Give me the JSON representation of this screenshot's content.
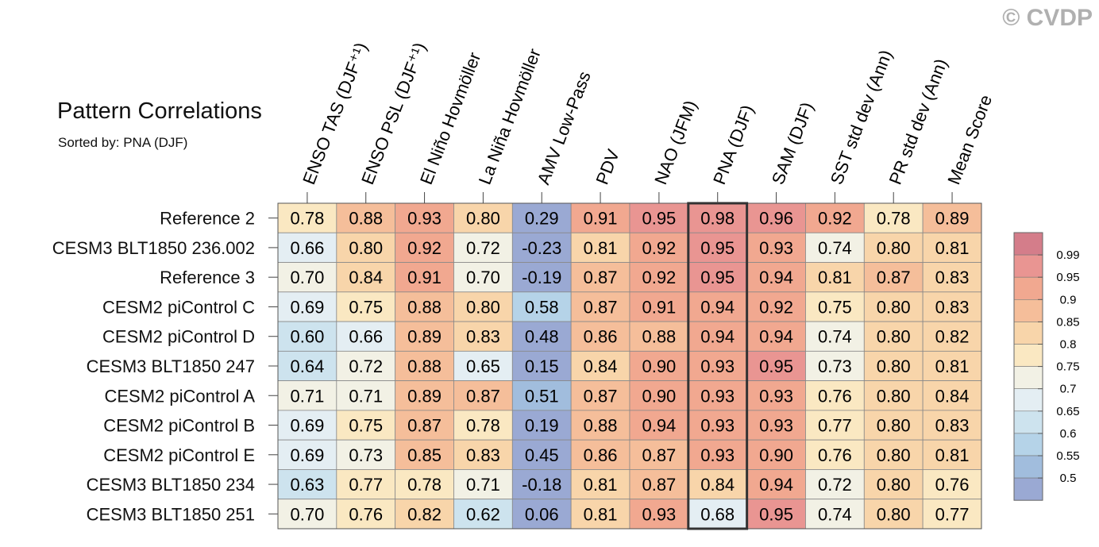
{
  "header": {
    "title": "Pattern Correlations",
    "subtitle": "Sorted by: PNA (DJF)",
    "watermark": "© CVDP"
  },
  "chart_data": {
    "type": "heatmap",
    "title": "Pattern Correlations",
    "subtitle": "Sorted by: PNA (DJF)",
    "sorted_by": "PNA (DJF)",
    "columns": [
      "ENSO TAS (DJF⁺¹)",
      "ENSO PSL (DJF⁺¹)",
      "El Niño Hovmöller",
      "La Niña Hovmöller",
      "AMV Low-Pass",
      "PDV",
      "NAO (JFM)",
      "PNA (DJF)",
      "SAM (DJF)",
      "SST std dev (Ann)",
      "PR std dev (Ann)",
      "Mean Score"
    ],
    "highlight_column": "PNA (DJF)",
    "rows": [
      {
        "name": "Reference 2",
        "values": [
          "0.78",
          "0.88",
          "0.93",
          "0.80",
          "0.29",
          "0.91",
          "0.95",
          "0.98",
          "0.96",
          "0.92",
          "0.78",
          "0.89"
        ]
      },
      {
        "name": "CESM3 BLT1850 236.002",
        "values": [
          "0.66",
          "0.80",
          "0.92",
          "0.72",
          "-0.23",
          "0.81",
          "0.92",
          "0.95",
          "0.93",
          "0.74",
          "0.80",
          "0.81"
        ]
      },
      {
        "name": "Reference 3",
        "values": [
          "0.70",
          "0.84",
          "0.91",
          "0.70",
          "-0.19",
          "0.87",
          "0.92",
          "0.95",
          "0.94",
          "0.81",
          "0.87",
          "0.83"
        ]
      },
      {
        "name": "CESM2 piControl C",
        "values": [
          "0.69",
          "0.75",
          "0.88",
          "0.80",
          "0.58",
          "0.87",
          "0.91",
          "0.94",
          "0.92",
          "0.75",
          "0.80",
          "0.83"
        ]
      },
      {
        "name": "CESM2 piControl D",
        "values": [
          "0.60",
          "0.66",
          "0.89",
          "0.83",
          "0.48",
          "0.86",
          "0.88",
          "0.94",
          "0.94",
          "0.74",
          "0.80",
          "0.82"
        ]
      },
      {
        "name": "CESM3 BLT1850 247",
        "values": [
          "0.64",
          "0.72",
          "0.88",
          "0.65",
          "0.15",
          "0.84",
          "0.90",
          "0.93",
          "0.95",
          "0.73",
          "0.80",
          "0.81"
        ]
      },
      {
        "name": "CESM2 piControl A",
        "values": [
          "0.71",
          "0.71",
          "0.89",
          "0.87",
          "0.51",
          "0.87",
          "0.90",
          "0.93",
          "0.93",
          "0.76",
          "0.80",
          "0.84"
        ]
      },
      {
        "name": "CESM2 piControl B",
        "values": [
          "0.69",
          "0.75",
          "0.87",
          "0.78",
          "0.19",
          "0.88",
          "0.94",
          "0.93",
          "0.93",
          "0.77",
          "0.80",
          "0.83"
        ]
      },
      {
        "name": "CESM2 piControl E",
        "values": [
          "0.69",
          "0.73",
          "0.85",
          "0.83",
          "0.45",
          "0.86",
          "0.87",
          "0.93",
          "0.90",
          "0.76",
          "0.80",
          "0.81"
        ]
      },
      {
        "name": "CESM3 BLT1850 234",
        "values": [
          "0.63",
          "0.77",
          "0.78",
          "0.71",
          "-0.18",
          "0.81",
          "0.87",
          "0.84",
          "0.94",
          "0.72",
          "0.80",
          "0.76"
        ]
      },
      {
        "name": "CESM3 BLT1850 251",
        "values": [
          "0.70",
          "0.76",
          "0.82",
          "0.62",
          "0.06",
          "0.81",
          "0.93",
          "0.68",
          "0.95",
          "0.74",
          "0.80",
          "0.77"
        ]
      }
    ],
    "colorbar": {
      "levels": [
        "0.99",
        "0.95",
        "0.9",
        "0.85",
        "0.8",
        "0.75",
        "0.7",
        "0.65",
        "0.6",
        "0.55",
        "0.5"
      ],
      "colors": [
        "#d47d8a",
        "#e99592",
        "#f1a890",
        "#f5be9a",
        "#f8d5aa",
        "#fae8c2",
        "#f2f1e5",
        "#e4eef3",
        "#cde3ee",
        "#b5d3e8",
        "#a1bddd",
        "#9aa9d3"
      ]
    },
    "colors": {
      "highlight_border": "#333333",
      "grid": "#888888"
    }
  }
}
